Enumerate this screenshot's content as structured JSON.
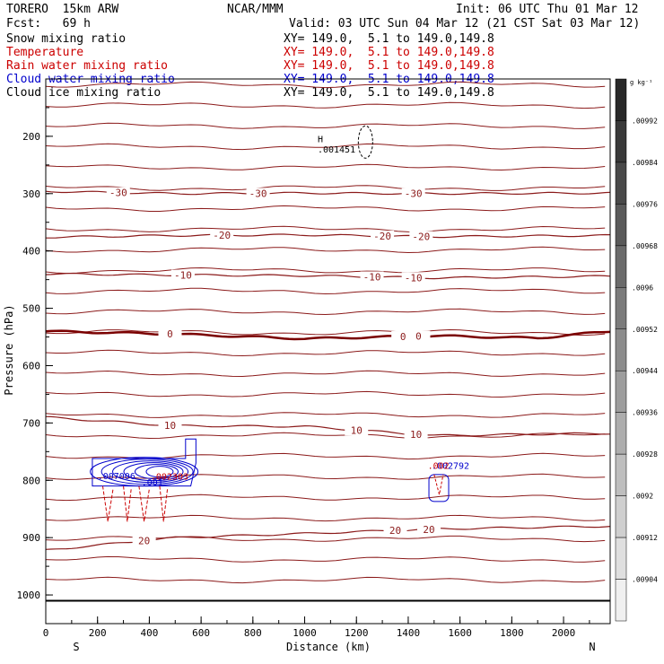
{
  "header": {
    "model": "TORERO  15km ARW",
    "center": "NCAR/MMM",
    "init": "Init: 06 UTC Thu 01 Mar 12",
    "fcst": "Fcst:   69 h",
    "valid": "Valid: 03 UTC Sun 04 Mar 12 (21 CST Sat 03 Mar 12)"
  },
  "fields": [
    {
      "name": "Snow mixing ratio",
      "xy": "XY= 149.0,  5.1 to 149.0,149.8",
      "color": "#000000"
    },
    {
      "name": "Temperature",
      "xy": "XY= 149.0,  5.1 to 149.0,149.8",
      "color": "#cc0000"
    },
    {
      "name": "Rain water mixing ratio",
      "xy": "XY= 149.0,  5.1 to 149.0,149.8",
      "color": "#cc0000"
    },
    {
      "name": "Cloud water mixing ratio",
      "xy": "XY= 149.0,  5.1 to 149.0,149.8",
      "color": "#0000cc"
    },
    {
      "name": "Cloud ice mixing ratio",
      "xy": "XY= 149.0,  5.1 to 149.0,149.8",
      "color": "#000000"
    }
  ],
  "chart_data": {
    "type": "contour-cross-section",
    "xlabel": "Distance (km)",
    "ylabel": "Pressure (hPa)",
    "xlim": [
      0,
      2180
    ],
    "ylim": [
      1050,
      100
    ],
    "x_ticks": [
      "0",
      "200",
      "400",
      "600",
      "800",
      "1000",
      "1200",
      "1400",
      "1600",
      "1800",
      "2000"
    ],
    "y_ticks": [
      "200",
      "300",
      "400",
      "500",
      "600",
      "700",
      "800",
      "900",
      "1000"
    ],
    "left_end": "S",
    "right_end": "N",
    "temperature_contours": [
      {
        "label": "-30",
        "x": [
          0,
          500,
          1000,
          1500,
          2180
        ],
        "p": [
          296,
          300,
          299,
          300,
          299
        ],
        "label_x": [
          280,
          820,
          1420
        ]
      },
      {
        "label": "-20",
        "x": [
          0,
          500,
          1000,
          1500,
          2180
        ],
        "p": [
          376,
          373,
          372,
          375,
          373
        ],
        "label_x": [
          680,
          1300,
          1450
        ]
      },
      {
        "label": "-10",
        "x": [
          0,
          500,
          1000,
          1500,
          2180
        ],
        "p": [
          440,
          442,
          443,
          447,
          444
        ],
        "label_x": [
          530,
          1260,
          1420
        ]
      },
      {
        "label": "0",
        "x": [
          0,
          500,
          1000,
          1500,
          1900,
          2180
        ],
        "p": [
          540,
          545,
          553,
          548,
          552,
          540
        ],
        "label_x": [
          480,
          1380,
          1440
        ]
      },
      {
        "label": "10",
        "x": [
          0,
          500,
          1000,
          1500,
          2180
        ],
        "p": [
          690,
          705,
          706,
          722,
          718
        ],
        "label_x": [
          480,
          1200,
          1430
        ]
      },
      {
        "label": "20",
        "x": [
          0,
          500,
          1000,
          1500,
          2180
        ],
        "p": [
          922,
          900,
          893,
          885,
          880
        ],
        "label_x": [
          380,
          1350,
          1480
        ]
      }
    ],
    "snow_labels": [
      {
        "x": 1050,
        "p": 210,
        "text": "H"
      },
      {
        "x": 1050,
        "p": 228,
        "text": ".001451"
      }
    ],
    "cloud_water_labels": [
      {
        "x": 200,
        "p": 798,
        "text": ".007006"
      },
      {
        "x": 370,
        "p": 809,
        "text": ".001"
      },
      {
        "x": 1490,
        "p": 780,
        "text": ".002792"
      }
    ],
    "rain_labels": [
      {
        "x": 405,
        "p": 799,
        "text": ".002303"
      },
      {
        "x": 1475,
        "p": 780,
        "text": ".002"
      }
    ],
    "colorbar": {
      "unit": "g kg⁻¹",
      "labels": [
        ".00992",
        ".00984",
        ".00976",
        ".00968",
        ".0096",
        ".00952",
        ".00944",
        ".00936",
        ".00928",
        ".0092",
        ".00912",
        ".00904"
      ]
    }
  }
}
